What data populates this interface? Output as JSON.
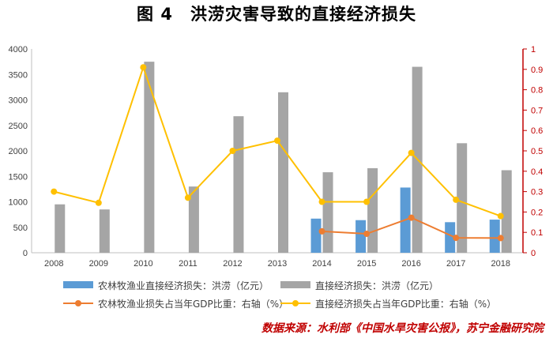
{
  "title": "图 4　洪涝灾害导致的直接经济损失",
  "source": "数据来源：水利部《中国水旱灾害公报》，苏宁金融研究院",
  "chart_data": {
    "type": "bar+line",
    "categories": [
      "2008",
      "2009",
      "2010",
      "2011",
      "2012",
      "2013",
      "2014",
      "2015",
      "2016",
      "2017",
      "2018"
    ],
    "y_left": {
      "min": 0,
      "max": 4000,
      "step": 500,
      "ticks": [
        "0",
        "500",
        "1000",
        "1500",
        "2000",
        "2500",
        "3000",
        "3500",
        "4000"
      ]
    },
    "y_right": {
      "min": 0,
      "max": 1,
      "step": 0.1,
      "ticks": [
        "0",
        "0.1",
        "0.2",
        "0.3",
        "0.4",
        "0.5",
        "0.6",
        "0.7",
        "0.8",
        "0.9",
        "1"
      ]
    },
    "grid": false,
    "legend_position": "bottom",
    "series": [
      {
        "name": "农林牧渔业直接经济损失：洪涝（亿元）",
        "type": "bar",
        "axis": "left",
        "color": "#5b9bd5",
        "values": [
          null,
          null,
          null,
          null,
          null,
          null,
          670,
          640,
          1280,
          600,
          650
        ]
      },
      {
        "name": "直接经济损失：洪涝（亿元）",
        "type": "bar",
        "axis": "left",
        "color": "#a5a5a5",
        "values": [
          950,
          850,
          3750,
          1300,
          2680,
          3150,
          1580,
          1660,
          3650,
          2150,
          1620
        ]
      },
      {
        "name": "农林牧渔业损失占当年GDP比重：右轴（%）",
        "type": "line",
        "axis": "right",
        "color": "#ed7d31",
        "values": [
          null,
          null,
          null,
          null,
          null,
          null,
          0.105,
          0.093,
          0.172,
          0.073,
          0.072
        ]
      },
      {
        "name": "直接经济损失占当年GDP比重：右轴（%）",
        "type": "line",
        "axis": "right",
        "color": "#ffc000",
        "values": [
          0.3,
          0.245,
          0.91,
          0.27,
          0.5,
          0.55,
          0.25,
          0.25,
          0.49,
          0.26,
          0.18
        ]
      }
    ]
  }
}
